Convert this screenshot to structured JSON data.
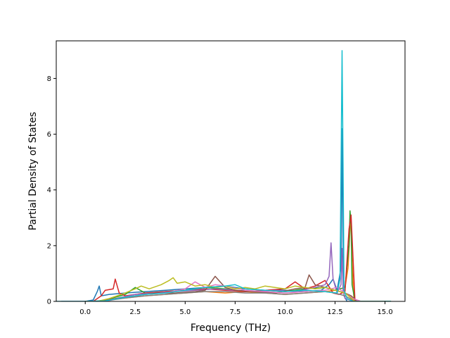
{
  "chart_data": {
    "type": "line",
    "title": "",
    "xlabel": "Frequency (THz)",
    "ylabel": "Partial Density of States",
    "xlim": [
      -1.45,
      16.0
    ],
    "ylim": [
      0,
      9.35
    ],
    "xticks": [
      0.0,
      2.5,
      5.0,
      7.5,
      10.0,
      12.5,
      15.0
    ],
    "xtick_labels": [
      "0.0",
      "2.5",
      "5.0",
      "7.5",
      "10.0",
      "12.5",
      "15.0"
    ],
    "yticks": [
      0,
      2,
      4,
      6,
      8
    ],
    "ytick_labels": [
      "0",
      "2",
      "4",
      "6",
      "8"
    ],
    "grid": false,
    "legend": "none",
    "series": [
      {
        "color": "#1f77b4",
        "x": [
          -1.2,
          0.0,
          0.4,
          0.6,
          0.7,
          0.8,
          1.2,
          2.0,
          3.0,
          4.0,
          5.0,
          6.0,
          7.0,
          8.0,
          9.0,
          10.0,
          11.0,
          11.8,
          12.2,
          12.4,
          12.6,
          12.8,
          12.85,
          12.9,
          12.95,
          13.1,
          13.3,
          14.0,
          15.3
        ],
        "y": [
          0,
          0,
          0.05,
          0.35,
          0.55,
          0.2,
          0.25,
          0.3,
          0.35,
          0.4,
          0.45,
          0.5,
          0.55,
          0.45,
          0.4,
          0.4,
          0.35,
          0.4,
          0.6,
          0.8,
          0.4,
          1.2,
          6.2,
          2.0,
          0.2,
          0,
          0,
          0,
          0
        ]
      },
      {
        "color": "#ff7f0e",
        "x": [
          0.0,
          0.6,
          1.0,
          2.0,
          3.0,
          4.0,
          5.0,
          6.0,
          7.0,
          8.0,
          9.0,
          10.0,
          11.0,
          12.0,
          12.5,
          13.0,
          13.15,
          13.25,
          13.3,
          13.35,
          13.45,
          14.0
        ],
        "y": [
          0,
          0,
          0.05,
          0.12,
          0.2,
          0.25,
          0.3,
          0.35,
          0.3,
          0.35,
          0.3,
          0.25,
          0.3,
          0.35,
          0.4,
          0.5,
          1.2,
          2.6,
          2.9,
          1.5,
          0,
          0
        ]
      },
      {
        "color": "#2ca02c",
        "x": [
          0.0,
          0.5,
          1.0,
          2.0,
          2.5,
          3.0,
          4.0,
          5.0,
          6.0,
          7.0,
          8.0,
          9.0,
          10.0,
          11.0,
          12.0,
          12.5,
          13.0,
          13.2,
          13.25,
          13.3,
          13.35,
          13.5,
          14.5,
          15.3
        ],
        "y": [
          0,
          0,
          0.05,
          0.25,
          0.5,
          0.3,
          0.35,
          0.4,
          0.5,
          0.45,
          0.35,
          0.4,
          0.35,
          0.45,
          0.5,
          0.4,
          0.5,
          2.0,
          3.25,
          2.8,
          0.6,
          0,
          0,
          0
        ]
      },
      {
        "color": "#d62728",
        "x": [
          0.0,
          0.4,
          0.8,
          1.0,
          1.4,
          1.5,
          1.7,
          2.0,
          3.0,
          4.0,
          5.0,
          6.0,
          7.0,
          8.0,
          9.0,
          10.0,
          10.5,
          11.0,
          11.5,
          12.0,
          12.4,
          12.7,
          13.0,
          13.2,
          13.3,
          13.5,
          14.0
        ],
        "y": [
          0,
          0,
          0.2,
          0.4,
          0.45,
          0.8,
          0.3,
          0.2,
          0.3,
          0.35,
          0.4,
          0.45,
          0.4,
          0.35,
          0.4,
          0.45,
          0.7,
          0.45,
          0.55,
          0.75,
          0.3,
          0.25,
          0.35,
          2.6,
          3.1,
          0,
          0
        ]
      },
      {
        "color": "#9467bd",
        "x": [
          0.0,
          0.8,
          1.5,
          2.5,
          3.5,
          4.5,
          5.5,
          6.5,
          7.5,
          8.5,
          9.5,
          10.5,
          11.5,
          12.0,
          12.2,
          12.3,
          12.4,
          12.6,
          12.8,
          12.85,
          12.9,
          13.0,
          13.5,
          15.0
        ],
        "y": [
          0,
          0,
          0.1,
          0.25,
          0.3,
          0.35,
          0.4,
          0.45,
          0.4,
          0.35,
          0.4,
          0.35,
          0.5,
          0.6,
          0.9,
          2.1,
          0.8,
          0.3,
          0.6,
          1.9,
          0.4,
          0.1,
          0,
          0
        ]
      },
      {
        "color": "#8c564b",
        "x": [
          0.0,
          0.8,
          1.5,
          2.5,
          3.5,
          4.5,
          5.5,
          6.0,
          6.5,
          7.0,
          7.5,
          8.5,
          9.5,
          10.5,
          11.0,
          11.2,
          11.5,
          12.0,
          12.5,
          13.0,
          13.3,
          13.6,
          15.0
        ],
        "y": [
          0,
          0,
          0.1,
          0.2,
          0.3,
          0.3,
          0.35,
          0.4,
          0.9,
          0.5,
          0.4,
          0.35,
          0.3,
          0.45,
          0.5,
          0.95,
          0.6,
          0.5,
          0.4,
          0.3,
          0.2,
          0,
          0
        ]
      },
      {
        "color": "#e377c2",
        "x": [
          0.0,
          1.0,
          2.0,
          3.0,
          4.0,
          5.0,
          5.5,
          6.0,
          6.5,
          7.0,
          8.0,
          9.0,
          10.0,
          11.0,
          12.0,
          12.6,
          13.0,
          13.4,
          13.8,
          15.0
        ],
        "y": [
          0,
          0,
          0.15,
          0.25,
          0.3,
          0.45,
          0.7,
          0.5,
          0.6,
          0.55,
          0.4,
          0.35,
          0.3,
          0.35,
          0.4,
          0.5,
          0.3,
          0.1,
          0,
          0
        ]
      },
      {
        "color": "#7f7f7f",
        "x": [
          0.0,
          1.0,
          2.0,
          3.0,
          4.0,
          5.0,
          6.0,
          7.0,
          8.0,
          9.0,
          10.0,
          11.0,
          12.0,
          12.5,
          13.0,
          13.5,
          15.0
        ],
        "y": [
          0,
          0.02,
          0.12,
          0.2,
          0.25,
          0.3,
          0.35,
          0.35,
          0.3,
          0.3,
          0.25,
          0.3,
          0.35,
          0.3,
          0.2,
          0,
          0
        ]
      },
      {
        "color": "#bcbd22",
        "x": [
          0.0,
          0.6,
          1.2,
          2.0,
          2.5,
          2.8,
          3.2,
          3.8,
          4.2,
          4.4,
          4.6,
          5.0,
          5.5,
          6.0,
          6.5,
          7.0,
          7.5,
          8.0,
          8.5,
          9.0,
          9.5,
          10.0,
          10.5,
          11.0,
          11.5,
          12.0,
          12.5,
          13.0,
          13.5,
          15.0
        ],
        "y": [
          0,
          0,
          0.1,
          0.3,
          0.45,
          0.55,
          0.45,
          0.6,
          0.75,
          0.85,
          0.65,
          0.7,
          0.55,
          0.6,
          0.5,
          0.55,
          0.45,
          0.5,
          0.45,
          0.55,
          0.5,
          0.45,
          0.55,
          0.5,
          0.45,
          0.5,
          0.4,
          0.3,
          0,
          0
        ]
      },
      {
        "color": "#17becf",
        "x": [
          -1.45,
          0.0,
          1.0,
          2.0,
          3.0,
          4.0,
          5.0,
          6.0,
          7.0,
          7.5,
          8.0,
          9.0,
          10.0,
          11.0,
          12.0,
          12.6,
          12.75,
          12.85,
          12.9,
          12.95,
          13.1,
          13.4,
          14.5,
          15.3
        ],
        "y": [
          0,
          0,
          0.02,
          0.15,
          0.25,
          0.3,
          0.4,
          0.5,
          0.55,
          0.6,
          0.45,
          0.4,
          0.35,
          0.4,
          0.35,
          0.3,
          0.8,
          9.0,
          5.0,
          0.4,
          0.1,
          0,
          0,
          0
        ]
      }
    ]
  }
}
